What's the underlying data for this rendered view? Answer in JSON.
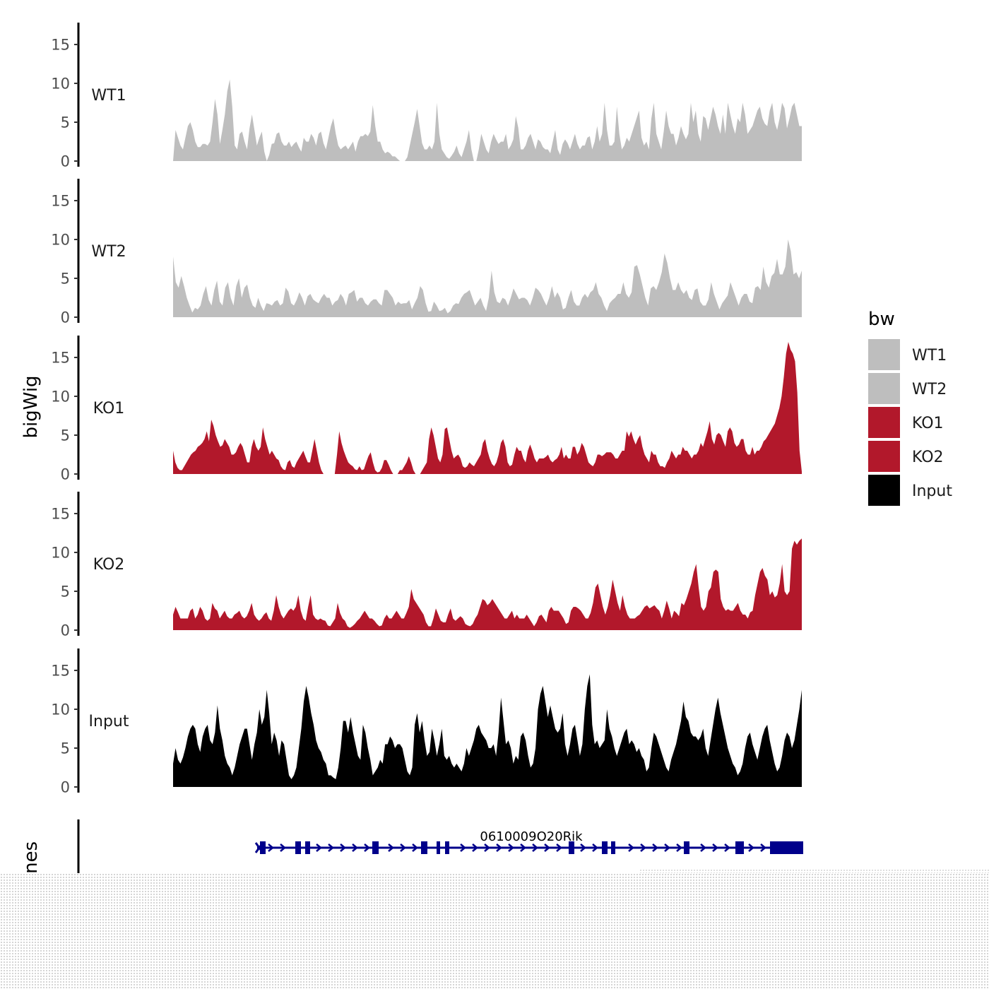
{
  "chart_data": {
    "type": "area",
    "title": "",
    "ylabel": "bigWig",
    "ylim": [
      0,
      18
    ],
    "yticks": [
      0,
      5,
      10,
      15
    ],
    "legend": {
      "title": "bw",
      "position": "right"
    },
    "gene_track": {
      "label": "Genes",
      "gene": "0610009O20Rik",
      "color": "#00008b"
    },
    "series": [
      {
        "name": "WT1",
        "color": "#bebebe",
        "values": [
          0,
          4,
          3,
          2,
          1.5,
          3,
          4.5,
          5,
          4,
          2.5,
          1.8,
          1.8,
          2.2,
          2.2,
          2,
          2.5,
          5,
          8,
          6,
          2.2,
          4,
          6,
          9,
          10.5,
          7,
          2,
          1.5,
          3.5,
          3.8,
          2.5,
          1.5,
          4.2,
          6,
          4,
          2,
          3,
          3.8,
          1.2,
          0,
          0.8,
          2.2,
          2.3,
          3.5,
          3.7,
          2.5,
          2,
          2,
          2.5,
          1.8,
          2.2,
          2.5,
          1.8,
          1.2,
          3,
          2.5,
          2.5,
          3.5,
          3,
          2,
          3.5,
          3.8,
          2.3,
          1.5,
          3,
          4.5,
          5.5,
          3.5,
          2,
          1.5,
          1.8,
          2,
          1.5,
          2,
          2.5,
          1.2,
          2.5,
          3.2,
          3.2,
          3.5,
          3.2,
          3.8,
          7.2,
          4.5,
          2.5,
          2.5,
          1.5,
          1,
          1.2,
          1,
          0.6,
          0.6,
          0.3,
          0,
          0,
          0,
          0.5,
          2,
          3.5,
          5,
          6.7,
          4.5,
          2.3,
          1.5,
          1.5,
          2,
          1.5,
          2.5,
          7.5,
          3.5,
          1.5,
          1,
          0.5,
          0.3,
          0.7,
          1.2,
          2,
          1,
          0.5,
          1.5,
          2.5,
          4,
          1.5,
          0,
          0,
          1.5,
          3.5,
          2.5,
          1.5,
          1,
          2.5,
          3.5,
          2.8,
          2.2,
          2.5,
          2.5,
          3.5,
          1.5,
          2,
          2.8,
          5.8,
          4.3,
          1.5,
          1.5,
          2,
          3,
          3.5,
          2.5,
          1.5,
          2.8,
          2.5,
          1.8,
          1.5,
          1.5,
          1,
          2.5,
          4,
          1.5,
          0.8,
          2.2,
          2.8,
          2.3,
          1.5,
          2.5,
          3.5,
          2.2,
          1.5,
          2,
          2,
          3,
          3.2,
          1.5,
          2.5,
          4.5,
          2.5,
          3.5,
          7.5,
          4,
          2,
          2,
          2.5,
          7,
          3.5,
          1.5,
          2,
          3,
          2.5,
          3.5,
          4.5,
          5.5,
          6.5,
          3,
          2,
          2.5,
          1.5,
          5.5,
          7.5,
          3.5,
          2.5,
          1.5,
          3.8,
          6.5,
          4.5,
          3.5,
          3.5,
          2,
          3,
          4.5,
          3.5,
          2.8,
          3.5,
          7.5,
          5,
          6.5,
          3.5,
          2.5,
          5.8,
          5.5,
          4,
          5.5,
          7,
          6,
          4.5,
          3.5,
          6,
          3.5,
          7.5,
          6,
          4.5,
          3.5,
          5.5,
          5,
          7.5,
          6,
          3.5,
          4,
          4.5,
          5.5,
          6.5,
          7,
          5.5,
          4.8,
          4.5,
          6.5,
          7.5,
          5,
          4,
          5.5,
          7.5,
          6.8,
          4.2,
          5.5,
          7,
          7.5,
          6,
          4.5,
          4.5
        ]
      },
      {
        "name": "WT2",
        "color": "#bebebe",
        "values": [
          7.8,
          4.5,
          3.8,
          5.3,
          4,
          2.5,
          1.5,
          0.6,
          1.2,
          1,
          1.5,
          3,
          4,
          2.2,
          1.5,
          3.5,
          4.7,
          2,
          1.5,
          3.8,
          4.5,
          2.5,
          1.5,
          4,
          5,
          2.5,
          3.8,
          4.2,
          2.5,
          1.5,
          1.2,
          2.5,
          1.5,
          0.8,
          1.8,
          1.7,
          1.5,
          2,
          2.2,
          1.5,
          1.8,
          3.8,
          3.3,
          1.8,
          1.5,
          2.2,
          3.2,
          2.5,
          1.5,
          2.7,
          3,
          2.3,
          2,
          1.8,
          2.5,
          3,
          2.5,
          2.5,
          1.5,
          2,
          2.2,
          3,
          2.5,
          1.5,
          3,
          3.2,
          3.5,
          2,
          2.5,
          2.5,
          1.8,
          1.5,
          2,
          2.3,
          2.3,
          1.8,
          1.5,
          3.5,
          3.5,
          3,
          2.5,
          1.5,
          2,
          1.7,
          1.8,
          1.8,
          2.2,
          1,
          1.8,
          2.5,
          4,
          3.5,
          1.8,
          0.7,
          0.8,
          2,
          1.5,
          0.8,
          0.9,
          1.2,
          0.5,
          0.8,
          1.5,
          1.8,
          1.7,
          2.5,
          3,
          3.2,
          3.5,
          2.5,
          1.5,
          2,
          2.5,
          1.5,
          0.8,
          2.5,
          6,
          3.2,
          2,
          1.8,
          2.5,
          2.3,
          1.5,
          2.5,
          3.7,
          3,
          2.3,
          2.5,
          2.5,
          2.2,
          1.5,
          2.5,
          3.8,
          3.5,
          3,
          2.2,
          1.5,
          2.5,
          4,
          2.5,
          3.2,
          2.5,
          1,
          1.2,
          2.5,
          3.5,
          2,
          1.5,
          1.5,
          2.5,
          3,
          2.5,
          3.2,
          3.5,
          4.5,
          3,
          2.5,
          1.5,
          0.8,
          1.8,
          2.2,
          2.5,
          3,
          3,
          4.5,
          3,
          2.5,
          3.2,
          6.5,
          6.7,
          5.5,
          4,
          2.5,
          1.5,
          3.7,
          4,
          3.5,
          4.5,
          5.8,
          8.2,
          7,
          5,
          3.5,
          3.5,
          4.5,
          3.5,
          3,
          3.5,
          2.5,
          2.2,
          3.5,
          3.7,
          2,
          1.5,
          1.5,
          2.3,
          4.5,
          3,
          2,
          1,
          1.8,
          2.3,
          2.8,
          4.5,
          3.5,
          2.5,
          1.5,
          2.5,
          3,
          3,
          2,
          1.8,
          3.8,
          4,
          3.5,
          6.5,
          4.5,
          3.8,
          5.3,
          5.7,
          7.5,
          5.5,
          5.5,
          6.5,
          10,
          8.5,
          5.5,
          5.8,
          5,
          6
        ]
      },
      {
        "name": "KO1",
        "color": "#b2182b",
        "values": [
          3,
          1.5,
          0.8,
          0.5,
          0.5,
          1,
          1.5,
          2,
          2.5,
          2.8,
          3,
          3.5,
          3.7,
          4,
          4.5,
          5.5,
          4.2,
          7,
          6.2,
          5,
          4.2,
          3.5,
          3.7,
          4.5,
          4,
          3.5,
          2.5,
          2.5,
          2.8,
          3.5,
          4,
          3.5,
          2.5,
          1.5,
          1.5,
          3.5,
          4.5,
          3.5,
          3,
          3.5,
          6,
          4.5,
          3.5,
          2.5,
          3,
          2.5,
          2,
          1.8,
          1,
          0.6,
          0.5,
          1.5,
          1.8,
          1,
          0.8,
          1.5,
          2,
          2.5,
          3,
          2.2,
          1.5,
          1.5,
          3,
          4.5,
          3,
          1.5,
          0.5,
          0,
          0,
          0,
          0,
          0,
          0,
          2.5,
          5.5,
          4,
          3,
          2.2,
          1.5,
          1.2,
          1,
          0.6,
          0.5,
          1,
          0.5,
          0.6,
          1.5,
          2.3,
          2.8,
          1.5,
          0.5,
          0.2,
          0.3,
          0.8,
          1.8,
          1.8,
          1.2,
          0.5,
          0,
          0,
          0,
          0.5,
          0.5,
          1,
          1.5,
          2.3,
          1.5,
          0.5,
          0,
          0,
          0,
          0.5,
          1,
          1.5,
          4.5,
          6,
          5,
          3.5,
          2,
          1.5,
          2.5,
          5.8,
          6,
          4.5,
          3,
          2,
          2.3,
          2.5,
          2,
          1,
          0.8,
          1,
          1.5,
          1.2,
          1,
          1.5,
          2,
          2.5,
          4,
          4.5,
          3,
          2,
          1.3,
          1,
          1.5,
          2.5,
          4,
          4.5,
          3.5,
          1.5,
          1,
          1.2,
          2.5,
          3.5,
          3,
          3,
          2,
          1.5,
          3,
          3.8,
          3,
          2,
          1.5,
          2,
          2,
          2,
          2.2,
          2.5,
          1.8,
          1.5,
          1.8,
          2,
          2.5,
          3.5,
          2,
          2.5,
          2,
          2,
          3.5,
          3.5,
          2.5,
          3,
          4,
          3.5,
          2.5,
          1.5,
          1.2,
          1,
          1.5,
          2.5,
          2.5,
          2.3,
          2.5,
          2.8,
          2.8,
          2.8,
          2.5,
          2,
          2,
          2.5,
          3,
          3,
          5.5,
          4.8,
          5.5,
          4.5,
          3.8,
          4.5,
          5,
          3.5,
          2.5,
          2,
          1.5,
          3,
          2.5,
          2.5,
          1.5,
          1,
          1,
          0.8,
          1.5,
          2,
          3,
          2.5,
          2,
          2.5,
          2.5,
          3.5,
          3,
          3,
          2.5,
          2,
          2.5,
          2.5,
          3,
          4,
          3.5,
          4.5,
          5.5,
          6.8,
          4.5,
          3.8,
          5,
          5.3,
          5,
          4.2,
          3.5,
          5.5,
          6,
          5.5,
          4,
          3.5,
          3.8,
          4.5,
          4.5,
          3,
          2.5,
          2.5,
          3.5,
          2.5,
          3,
          3,
          3.5,
          4.2,
          4.5,
          5,
          5.5,
          6,
          6.5,
          7.5,
          8.5,
          10,
          12.5,
          15.5,
          17,
          16,
          15.5,
          14.5,
          10.5,
          3,
          0.3
        ]
      },
      {
        "name": "KO2",
        "color": "#b2182b",
        "values": [
          2,
          3,
          2.3,
          1.5,
          1.5,
          1.5,
          1.5,
          2.5,
          2.8,
          1.5,
          2,
          3,
          2.5,
          1.5,
          1.2,
          1.5,
          3.5,
          2.8,
          2.5,
          1.5,
          2,
          2.5,
          1.8,
          1.5,
          1.5,
          2,
          2.2,
          2.5,
          1.8,
          1.5,
          1.8,
          2.5,
          3.5,
          2,
          1.5,
          1.2,
          1.5,
          2,
          2.3,
          1.5,
          1.2,
          2.5,
          4.5,
          3,
          2,
          1.5,
          2,
          2.5,
          2.8,
          2.5,
          3,
          4.5,
          2.5,
          1.5,
          1.2,
          3,
          4.5,
          2,
          1.5,
          1.3,
          1.5,
          1.3,
          1.2,
          0.6,
          0.5,
          1,
          1.5,
          3.5,
          2.2,
          1.5,
          1.2,
          0.5,
          0.3,
          0.5,
          0.8,
          1.2,
          1.5,
          2,
          2.5,
          2,
          1.5,
          1.5,
          1.2,
          0.8,
          0.5,
          0.6,
          1.5,
          2,
          1.5,
          1.5,
          2,
          2.5,
          2,
          1.5,
          1.5,
          2.2,
          3,
          5.3,
          4,
          3.5,
          3,
          2.5,
          2,
          1,
          0.5,
          0.5,
          1.5,
          2.8,
          2,
          1.2,
          1,
          1,
          2,
          2.8,
          1.5,
          1.2,
          1.5,
          1.8,
          1.5,
          0.8,
          0.6,
          0.5,
          0.8,
          1.5,
          2,
          3,
          4,
          3.8,
          3.2,
          3.5,
          4,
          3.5,
          3,
          2.5,
          2,
          1.5,
          1.5,
          2,
          2.5,
          1.5,
          2,
          1.5,
          1.5,
          1.5,
          2,
          1.5,
          1,
          0.5,
          1,
          1.8,
          2,
          1.5,
          1,
          2.5,
          3,
          2.5,
          2.5,
          2.5,
          2,
          1.5,
          0.8,
          1,
          2.5,
          3,
          3,
          2.8,
          2.5,
          2,
          1.5,
          1.5,
          2.2,
          3.5,
          5.5,
          6,
          4.5,
          3,
          2,
          3,
          4.5,
          6.5,
          5,
          3.5,
          2.5,
          4.5,
          3,
          2,
          1.5,
          1.5,
          1.5,
          1.8,
          2,
          2.5,
          3,
          3.2,
          2.8,
          3,
          3.2,
          2.8,
          2.5,
          1.5,
          2.5,
          3.8,
          2.8,
          1.5,
          2.5,
          2.2,
          1.8,
          3.5,
          3.2,
          4,
          5,
          6,
          7.5,
          8.5,
          5.5,
          3,
          2.5,
          3,
          5,
          5.5,
          7.5,
          7.8,
          7.5,
          4,
          3,
          2.5,
          2.7,
          2.5,
          2.5,
          3,
          3.5,
          2.5,
          2,
          2,
          1.5,
          2.3,
          2.5,
          4.5,
          6,
          7.5,
          8,
          7,
          6.5,
          4.5,
          5,
          4.2,
          4.5,
          6,
          8.5,
          5,
          4.5,
          5,
          10.5,
          11.5,
          11,
          11.5,
          11.8
        ]
      },
      {
        "name": "Input",
        "color": "#000000",
        "values": [
          3,
          5,
          3.5,
          3,
          3.8,
          5,
          6.5,
          7.5,
          8,
          7.5,
          5.5,
          4.5,
          6.5,
          7.5,
          8,
          6,
          5.5,
          7,
          10.5,
          7.5,
          6,
          4,
          3,
          2.5,
          1.5,
          2.5,
          4,
          5.5,
          6.5,
          7.5,
          7.5,
          5.5,
          3.5,
          5.5,
          7,
          10,
          8,
          9,
          12.5,
          9.5,
          5.5,
          7,
          6,
          4,
          6,
          5.5,
          3.5,
          1.5,
          1,
          1.5,
          2.5,
          5,
          7.5,
          11,
          13,
          11.5,
          9.5,
          8,
          6,
          5,
          4.5,
          3.5,
          3,
          1.5,
          1.5,
          1.2,
          1,
          2.5,
          5,
          8.5,
          8.5,
          7,
          9,
          7,
          5.5,
          4,
          3.5,
          8,
          7,
          5,
          3.5,
          1.5,
          2,
          2.5,
          3.5,
          3,
          5.5,
          5.5,
          6.5,
          6,
          5,
          5.5,
          5.5,
          5,
          3.5,
          2,
          1.5,
          2.5,
          8,
          9.5,
          7,
          8.5,
          6,
          4,
          4.5,
          7.5,
          6,
          4,
          5.5,
          7.5,
          4,
          3.5,
          4,
          3,
          2.5,
          3,
          2.5,
          2,
          3,
          5,
          4,
          5,
          6,
          7.5,
          8,
          7,
          6.5,
          6,
          5,
          5,
          5.5,
          4,
          7,
          11.5,
          8.5,
          5.5,
          6,
          5,
          3,
          4,
          3.5,
          6.5,
          7,
          6,
          4,
          2.5,
          3,
          5,
          10,
          12,
          13,
          11,
          9,
          10.5,
          9,
          7.5,
          7,
          7.5,
          9.5,
          5.5,
          4,
          5.5,
          7.5,
          8,
          6,
          4,
          5.5,
          10,
          13,
          14.5,
          8,
          5.5,
          6,
          5,
          5.5,
          6,
          10,
          7.5,
          6.5,
          5,
          4,
          5,
          6,
          7,
          7.5,
          5.5,
          6,
          5.5,
          4.5,
          5,
          4,
          3.5,
          2,
          2.5,
          5,
          7,
          6.5,
          5.5,
          4.5,
          3.5,
          2.5,
          2,
          3.5,
          4.5,
          5.5,
          7,
          8.5,
          11,
          9,
          8.5,
          7,
          6.5,
          6.5,
          6,
          6.5,
          7.5,
          5,
          4,
          6,
          8,
          10,
          11.5,
          9.5,
          8,
          6.5,
          5,
          4,
          3,
          2.5,
          1.5,
          2,
          3,
          5,
          6.5,
          7,
          5.5,
          4.5,
          3.5,
          5,
          6.5,
          7.5,
          8,
          6,
          4.5,
          3,
          2,
          2.5,
          4,
          6,
          7,
          6.5,
          5,
          6,
          8,
          10,
          12.5
        ]
      }
    ]
  }
}
